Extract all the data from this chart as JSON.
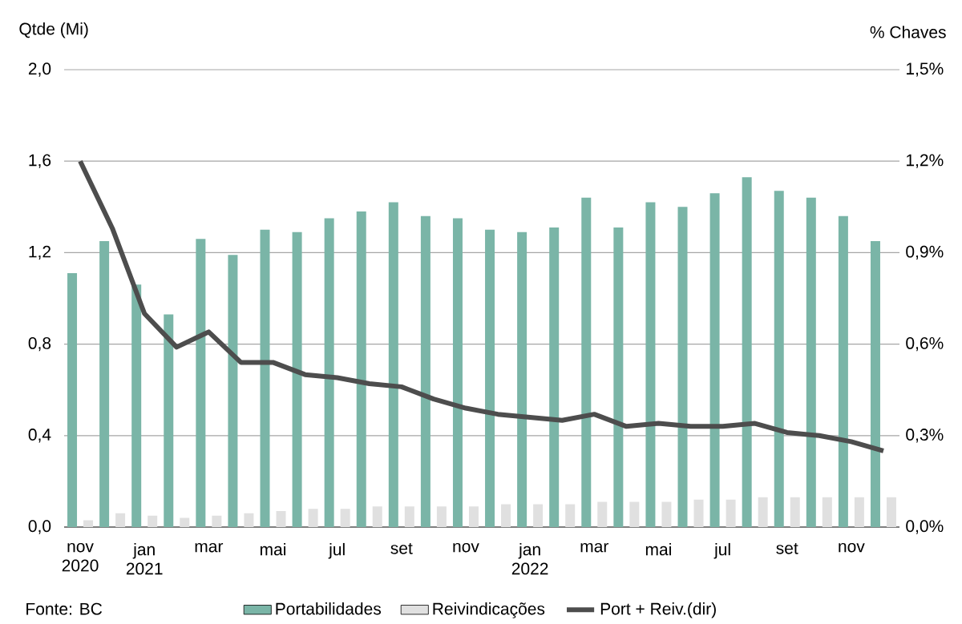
{
  "chart_data": {
    "type": "bar",
    "categories": [
      "nov 2020",
      null,
      "jan 2021",
      null,
      "mar",
      null,
      "mai",
      null,
      "jul",
      null,
      "set",
      null,
      "nov",
      null,
      "jan 2022",
      null,
      "mar",
      null,
      "mai",
      null,
      "jul",
      null,
      "set",
      null,
      "nov",
      null
    ],
    "series": [
      {
        "name": "Portabilidades",
        "color": "#7ab5a7",
        "values": [
          1.11,
          1.25,
          1.06,
          0.93,
          1.26,
          1.19,
          1.3,
          1.29,
          1.35,
          1.38,
          1.42,
          1.36,
          1.35,
          1.3,
          1.29,
          1.31,
          1.44,
          1.31,
          1.42,
          1.4,
          1.46,
          1.53,
          1.47,
          1.44,
          1.36,
          1.25
        ]
      },
      {
        "name": "Reivindicações",
        "color": "#e0e0e0",
        "values": [
          0.03,
          0.06,
          0.05,
          0.04,
          0.05,
          0.06,
          0.07,
          0.08,
          0.08,
          0.09,
          0.09,
          0.09,
          0.09,
          0.1,
          0.1,
          0.1,
          0.11,
          0.11,
          0.11,
          0.12,
          0.12,
          0.13,
          0.13,
          0.13,
          0.13,
          0.13
        ]
      },
      {
        "name": "Port + Reiv.(dir)",
        "type": "line",
        "axis": "y2",
        "color": "#4d4d4d",
        "values": [
          1.2,
          0.98,
          0.7,
          0.59,
          0.64,
          0.54,
          0.54,
          0.5,
          0.49,
          0.47,
          0.46,
          0.42,
          0.39,
          0.37,
          0.36,
          0.35,
          0.37,
          0.33,
          0.34,
          0.33,
          0.33,
          0.34,
          0.31,
          0.3,
          0.28,
          0.25
        ]
      }
    ],
    "ylabel": "Qtde (Mi)",
    "y2label": "% Chaves",
    "ylim": [
      0,
      2.0
    ],
    "yticks": [
      {
        "value": 0,
        "label": "0,0"
      },
      {
        "value": 0.4,
        "label": "0,4"
      },
      {
        "value": 0.8,
        "label": "0,8"
      },
      {
        "value": 1.2,
        "label": "1,2"
      },
      {
        "value": 1.6,
        "label": "1,6"
      },
      {
        "value": 2.0,
        "label": "2,0"
      }
    ],
    "y2lim": [
      0,
      1.5
    ],
    "y2ticks": [
      {
        "value": 0,
        "label": "0,0%"
      },
      {
        "value": 0.3,
        "label": "0,3%"
      },
      {
        "value": 0.6,
        "label": "0,6%"
      },
      {
        "value": 0.9,
        "label": "0,9%"
      },
      {
        "value": 1.2,
        "label": "1,2%"
      },
      {
        "value": 1.5,
        "label": "1,5%"
      }
    ],
    "grid": "y",
    "legend": "bottom",
    "annotations": [
      "Fonte: BC"
    ]
  }
}
